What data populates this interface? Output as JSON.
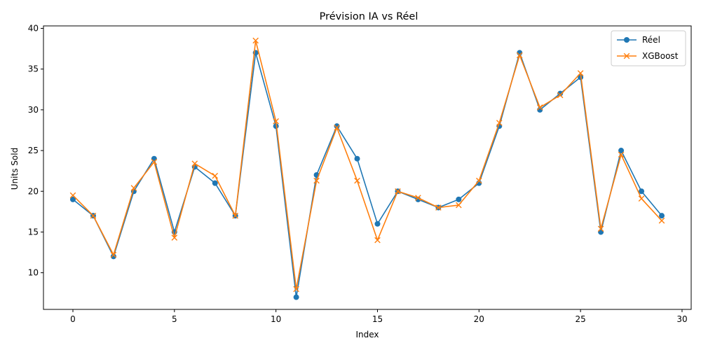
{
  "chart_data": {
    "type": "line",
    "title": "Prévision IA vs Réel",
    "xlabel": "Index",
    "ylabel": "Units Sold",
    "xlim": [
      -1.45,
      30.45
    ],
    "ylim": [
      5.5,
      40.3
    ],
    "x_ticks": [
      0,
      5,
      10,
      15,
      20,
      25,
      30
    ],
    "y_ticks": [
      10,
      15,
      20,
      25,
      30,
      35,
      40
    ],
    "grid": false,
    "legend_position": "top-right",
    "x": [
      0,
      1,
      2,
      3,
      4,
      5,
      6,
      7,
      8,
      9,
      10,
      11,
      12,
      13,
      14,
      15,
      16,
      17,
      18,
      19,
      20,
      21,
      22,
      23,
      24,
      25,
      26,
      27,
      28,
      29
    ],
    "series": [
      {
        "name": "Réel",
        "marker": "circle",
        "color": "#1f77b4",
        "values": [
          19,
          17,
          12,
          20,
          24,
          15,
          23,
          21,
          17,
          37,
          28,
          7,
          22,
          28,
          24,
          16,
          20,
          19,
          18,
          19,
          21,
          28,
          37,
          30,
          32,
          34,
          15,
          25,
          20,
          17
        ]
      },
      {
        "name": "XGBoost",
        "marker": "x",
        "color": "#ff7f0e",
        "values": [
          19.5,
          17,
          12.2,
          20.4,
          23.6,
          14.3,
          23.4,
          21.9,
          17,
          38.5,
          28.6,
          8,
          21.3,
          27.8,
          21.3,
          14,
          20,
          19.2,
          18,
          18.3,
          21.3,
          28.4,
          36.7,
          30.3,
          31.8,
          34.5,
          15.4,
          24.5,
          19.1,
          16.4
        ]
      }
    ]
  }
}
